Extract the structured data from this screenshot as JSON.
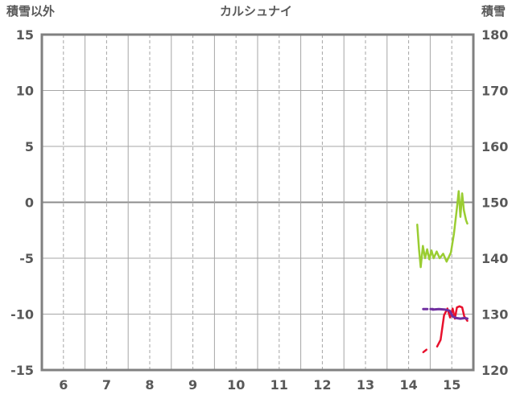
{
  "chart_data": {
    "type": "line",
    "title": "カルシュナイ",
    "left_axis": {
      "label": "積雪以外",
      "max": 15,
      "min": -15,
      "ticks": [
        15,
        10,
        5,
        0,
        -5,
        -10,
        -15
      ]
    },
    "right_axis": {
      "label": "積雪",
      "max": 180,
      "min": 120,
      "ticks": [
        180,
        170,
        160,
        150,
        140,
        130,
        120
      ]
    },
    "x_axis": {
      "min": 0,
      "max": 10,
      "tick_labels": [
        "6",
        "7",
        "8",
        "9",
        "10",
        "11",
        "12",
        "13",
        "14",
        "15"
      ],
      "tick_positions": [
        0.5,
        1.5,
        2.5,
        3.5,
        4.5,
        5.5,
        6.5,
        7.5,
        8.5,
        9.5
      ],
      "solid_gridlines": [
        1,
        2,
        3,
        4,
        5,
        6,
        7,
        8,
        9
      ],
      "dashed_gridlines": [
        0.5,
        1.5,
        2.5,
        3.5,
        4.5,
        5.5,
        6.5,
        7.5,
        8.5,
        9.5
      ]
    },
    "horizontal_gridlines": [
      10,
      5,
      0,
      -5,
      -10
    ],
    "grid": true,
    "legend": "none",
    "colors": {
      "frame": "#808080",
      "grid": "#a6a6a6",
      "zero_line": "#8c8c8c",
      "text": "#595959"
    },
    "series": [
      {
        "name": "green",
        "color": "#9acd32",
        "axis": "left",
        "width": 2.5,
        "segments": [
          {
            "dashed": false,
            "points": [
              [
                8.7,
                -2.0
              ],
              [
                8.74,
                -4.2
              ],
              [
                8.78,
                -5.8
              ],
              [
                8.83,
                -3.9
              ],
              [
                8.88,
                -5.0
              ],
              [
                8.93,
                -4.2
              ],
              [
                8.98,
                -5.1
              ],
              [
                9.03,
                -4.3
              ],
              [
                9.08,
                -5.0
              ],
              [
                9.15,
                -4.4
              ],
              [
                9.22,
                -5.0
              ],
              [
                9.3,
                -4.6
              ],
              [
                9.38,
                -5.3
              ],
              [
                9.48,
                -4.5
              ],
              [
                9.55,
                -2.8
              ],
              [
                9.62,
                -0.5
              ],
              [
                9.66,
                1.0
              ],
              [
                9.7,
                -1.3
              ],
              [
                9.74,
                0.8
              ],
              [
                9.78,
                -0.7
              ],
              [
                9.83,
                -1.6
              ],
              [
                9.86,
                -1.9
              ]
            ]
          }
        ]
      },
      {
        "name": "red",
        "color": "#e8112d",
        "axis": "left",
        "width": 2.5,
        "segments": [
          {
            "dashed": true,
            "points": [
              [
                8.84,
                -13.4
              ],
              [
                8.94,
                -13.1
              ]
            ]
          },
          {
            "dashed": false,
            "points": [
              [
                9.16,
                -12.9
              ],
              [
                9.24,
                -12.3
              ],
              [
                9.32,
                -10.1
              ],
              [
                9.4,
                -9.5
              ],
              [
                9.46,
                -10.3
              ],
              [
                9.52,
                -9.5
              ],
              [
                9.57,
                -10.4
              ],
              [
                9.62,
                -9.4
              ],
              [
                9.68,
                -9.3
              ],
              [
                9.74,
                -9.4
              ],
              [
                9.79,
                -10.2
              ],
              [
                9.86,
                -10.6
              ]
            ]
          }
        ]
      },
      {
        "name": "purple",
        "color": "#7030a0",
        "axis": "right",
        "width": 3,
        "segments": [
          {
            "dashed": true,
            "points": [
              [
                8.84,
                130.9
              ],
              [
                9.06,
                130.9
              ]
            ]
          },
          {
            "dashed": false,
            "points": [
              [
                9.06,
                130.8
              ],
              [
                9.2,
                130.9
              ],
              [
                9.35,
                130.8
              ],
              [
                9.45,
                130.6
              ],
              [
                9.52,
                129.6
              ],
              [
                9.6,
                129.3
              ],
              [
                9.7,
                129.2
              ],
              [
                9.8,
                129.3
              ],
              [
                9.86,
                129.2
              ]
            ]
          }
        ]
      }
    ]
  }
}
